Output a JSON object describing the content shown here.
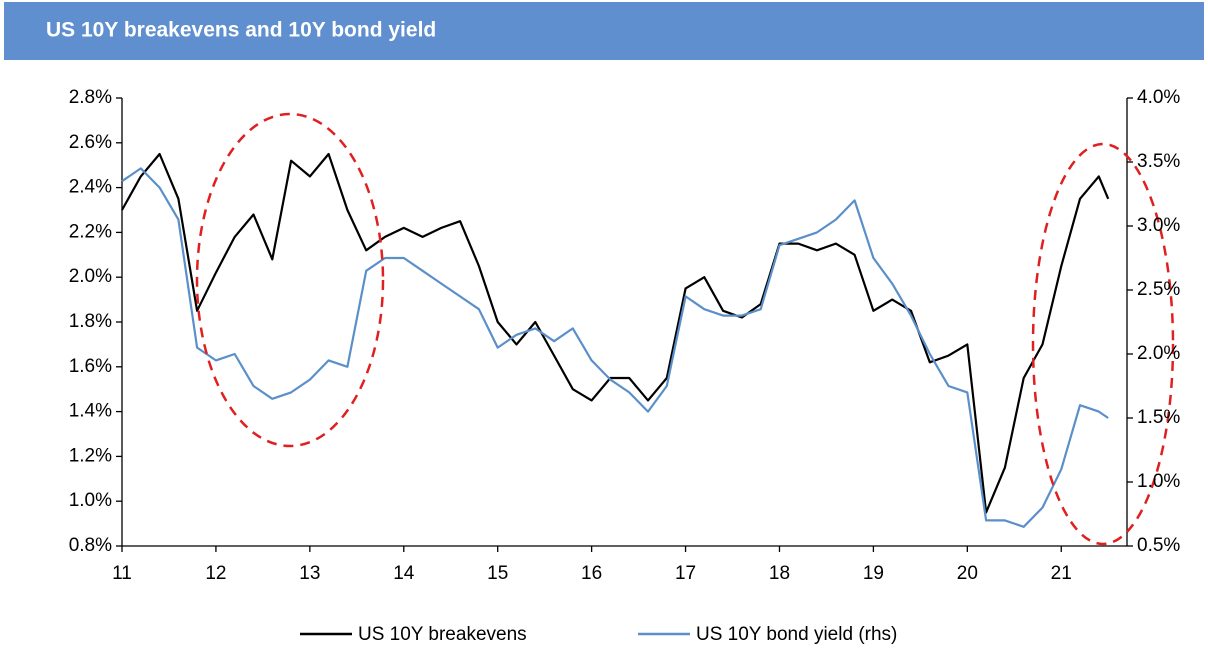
{
  "chart_data": {
    "type": "line",
    "title": "US 10Y breakevens and 10Y bond yield",
    "x": [
      11.0,
      11.2,
      11.4,
      11.6,
      11.8,
      12.0,
      12.2,
      12.4,
      12.6,
      12.8,
      13.0,
      13.2,
      13.4,
      13.6,
      13.8,
      14.0,
      14.2,
      14.4,
      14.6,
      14.8,
      15.0,
      15.2,
      15.4,
      15.6,
      15.8,
      16.0,
      16.2,
      16.4,
      16.6,
      16.8,
      17.0,
      17.2,
      17.4,
      17.6,
      17.8,
      18.0,
      18.2,
      18.4,
      18.6,
      18.8,
      19.0,
      19.2,
      19.4,
      19.6,
      19.8,
      20.0,
      20.2,
      20.4,
      20.6,
      20.8,
      21.0,
      21.2,
      21.4,
      21.5
    ],
    "series": [
      {
        "name": "US 10Y breakevens",
        "color": "#000000",
        "values": [
          2.3,
          2.45,
          2.55,
          2.35,
          1.85,
          2.02,
          2.18,
          2.28,
          2.08,
          2.52,
          2.45,
          2.55,
          2.3,
          2.12,
          2.18,
          2.22,
          2.18,
          2.22,
          2.25,
          2.05,
          1.8,
          1.7,
          1.8,
          1.65,
          1.5,
          1.45,
          1.55,
          1.55,
          1.45,
          1.55,
          1.95,
          2.0,
          1.85,
          1.82,
          1.88,
          2.15,
          2.15,
          2.12,
          2.15,
          2.1,
          1.85,
          1.9,
          1.85,
          1.62,
          1.65,
          1.7,
          0.95,
          1.15,
          1.55,
          1.7,
          2.05,
          2.35,
          2.45,
          2.35
        ]
      },
      {
        "name": "US 10Y bond yield (rhs)",
        "color": "#5b8fc9",
        "axis": "y2",
        "values": [
          3.35,
          3.45,
          3.3,
          3.05,
          2.05,
          1.95,
          2.0,
          1.75,
          1.65,
          1.7,
          1.8,
          1.95,
          1.9,
          2.65,
          2.75,
          2.75,
          2.65,
          2.55,
          2.45,
          2.35,
          2.05,
          2.15,
          2.2,
          2.1,
          2.2,
          1.95,
          1.8,
          1.7,
          1.55,
          1.75,
          2.45,
          2.35,
          2.3,
          2.3,
          2.35,
          2.85,
          2.9,
          2.95,
          3.05,
          3.2,
          2.75,
          2.55,
          2.3,
          2.0,
          1.75,
          1.7,
          0.7,
          0.7,
          0.65,
          0.8,
          1.1,
          1.6,
          1.55,
          1.5
        ]
      }
    ],
    "xlim": [
      11,
      21.7
    ],
    "xticks": [
      11,
      12,
      13,
      14,
      15,
      16,
      17,
      18,
      19,
      20,
      21
    ],
    "ylim": [
      0.8,
      2.8
    ],
    "yticks": [
      {
        "value": 0.8,
        "label": "0.8%"
      },
      {
        "value": 1.0,
        "label": "1.0%"
      },
      {
        "value": 1.2,
        "label": "1.2%"
      },
      {
        "value": 1.4,
        "label": "1.4%"
      },
      {
        "value": 1.6,
        "label": "1.6%"
      },
      {
        "value": 1.8,
        "label": "1.8%"
      },
      {
        "value": 2.0,
        "label": "2.0%"
      },
      {
        "value": 2.2,
        "label": "2.2%"
      },
      {
        "value": 2.4,
        "label": "2.4%"
      },
      {
        "value": 2.6,
        "label": "2.6%"
      },
      {
        "value": 2.8,
        "label": "2.8%"
      }
    ],
    "y2lim": [
      0.5,
      4.0
    ],
    "y2ticks": [
      {
        "value": 0.5,
        "label": "0.5%"
      },
      {
        "value": 1.0,
        "label": "1.0%"
      },
      {
        "value": 1.5,
        "label": "1.5%"
      },
      {
        "value": 2.0,
        "label": "2.0%"
      },
      {
        "value": 2.5,
        "label": "2.5%"
      },
      {
        "value": 3.0,
        "label": "3.0%"
      },
      {
        "value": 3.5,
        "label": "3.5%"
      },
      {
        "value": 4.0,
        "label": "4.0%"
      }
    ],
    "grid": false
  }
}
